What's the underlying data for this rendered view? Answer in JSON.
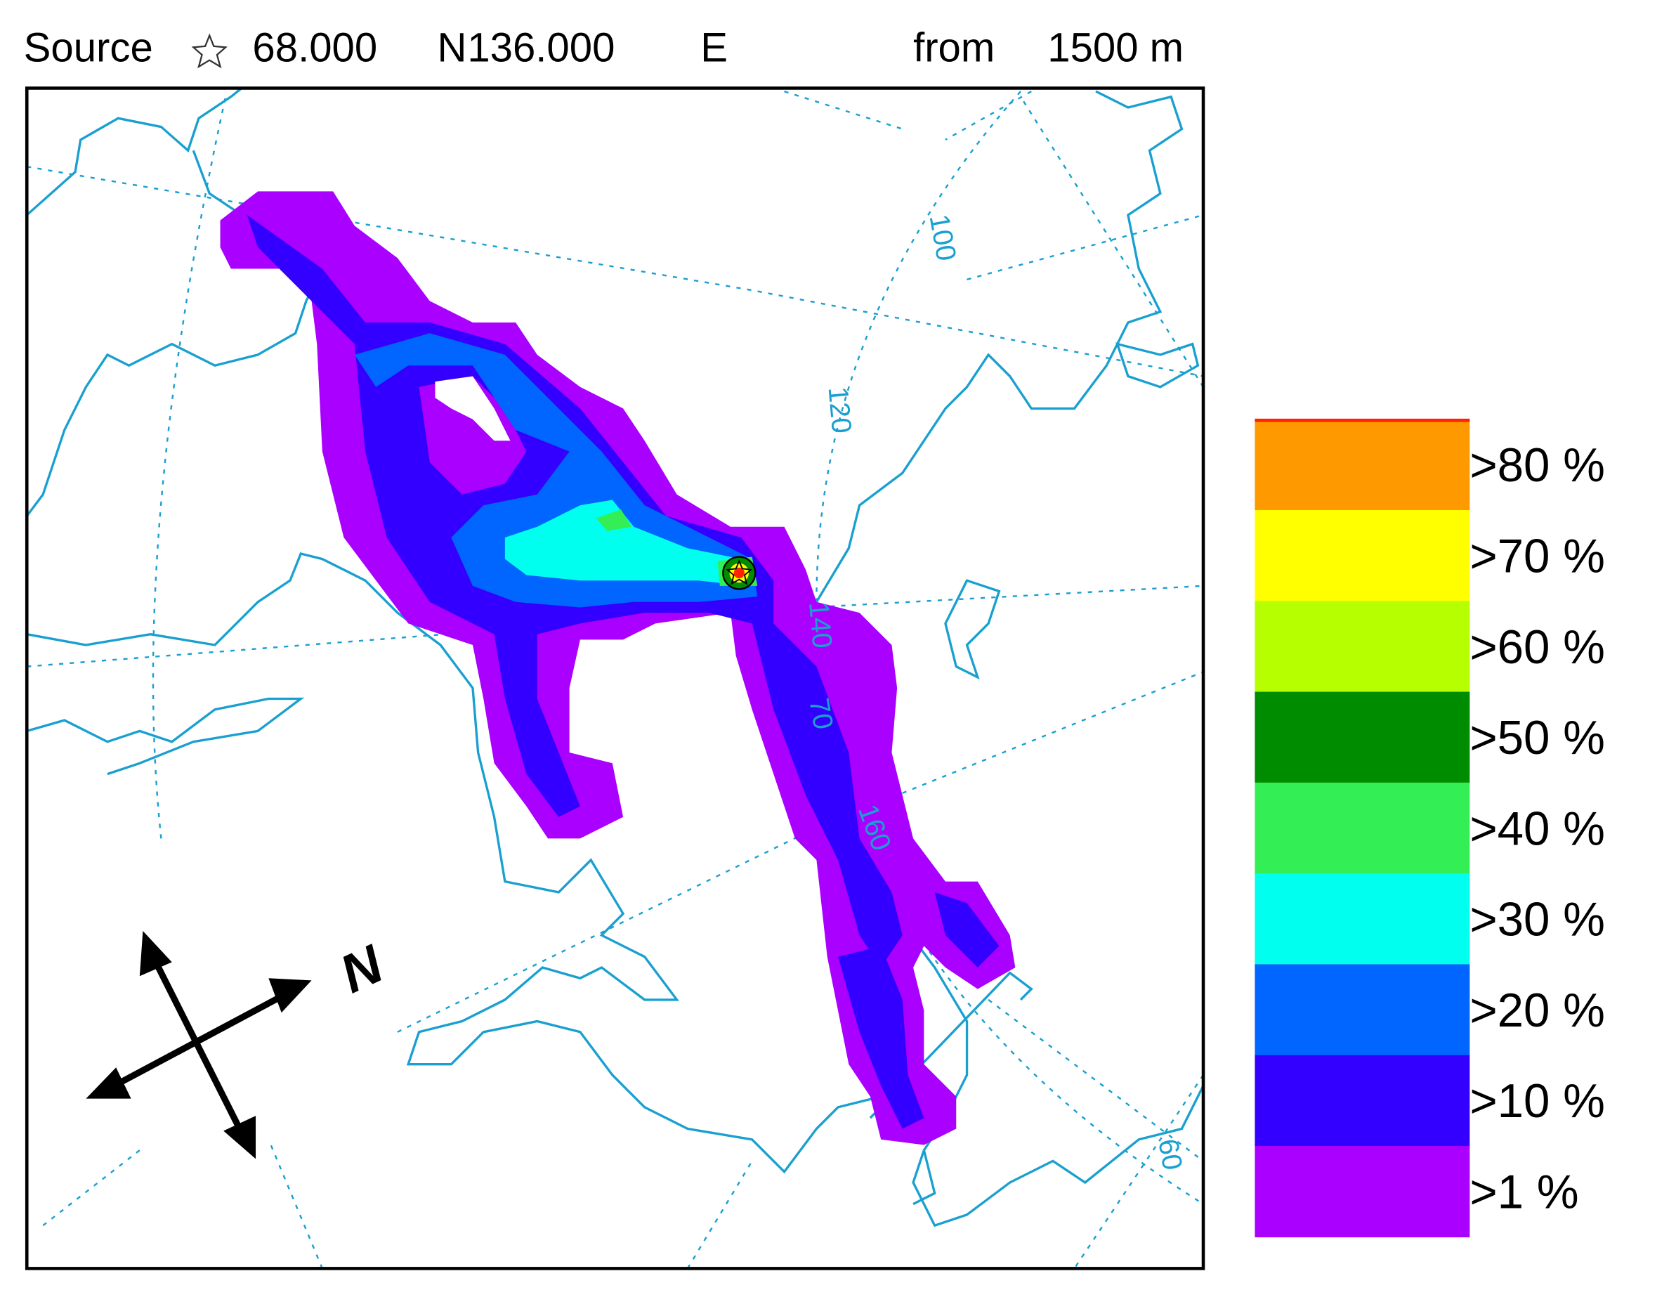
{
  "header": {
    "source_label": "Source",
    "latitude": "68.000",
    "lat_hemisphere": "N",
    "longitude": "136.000",
    "lon_hemisphere": "E",
    "height_prefix": "from",
    "height": "1500 m"
  },
  "map": {
    "grid_labels": [
      "100",
      "120",
      "140",
      "70",
      "160",
      "60"
    ],
    "compass_label": "N"
  },
  "legend": {
    "items": [
      {
        "label": ">80 %",
        "color": "#ff9900"
      },
      {
        "label": ">70 %",
        "color": "#ffff00"
      },
      {
        "label": ">60 %",
        "color": "#b5ff00"
      },
      {
        "label": ">50 %",
        "color": "#008c00"
      },
      {
        "label": ">40 %",
        "color": "#33ee55"
      },
      {
        "label": ">30 %",
        "color": "#00ffee"
      },
      {
        "label": ">20 %",
        "color": "#0066ff"
      },
      {
        "label": ">10 %",
        "color": "#3300ff"
      },
      {
        "label": ">1 %",
        "color": "#aa00ff"
      }
    ]
  }
}
